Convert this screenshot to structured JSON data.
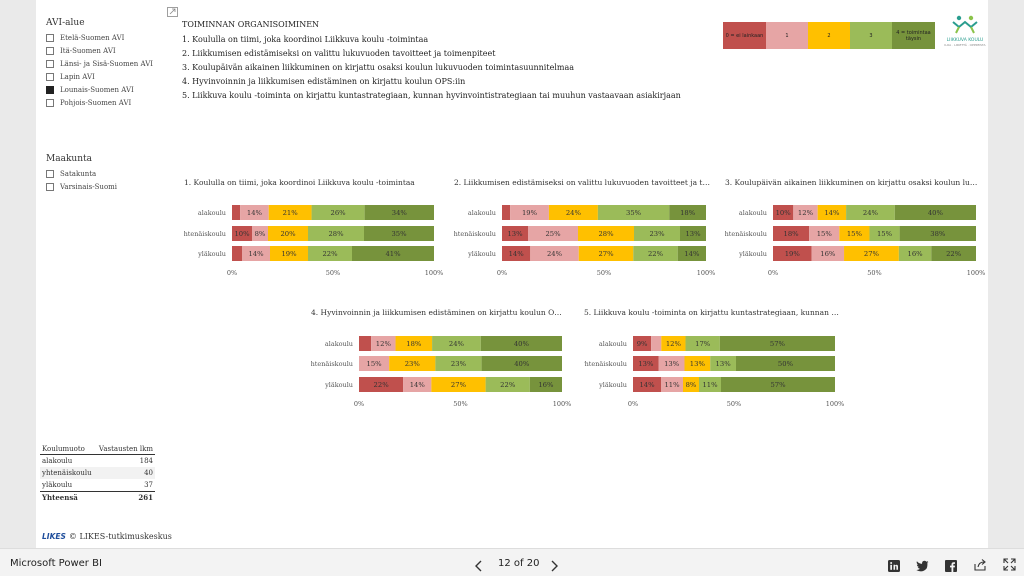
{
  "avi_slicer": {
    "title": "AVI-alue",
    "items": [
      {
        "label": "Etelä-Suomen AVI",
        "checked": false
      },
      {
        "label": "Itä-Suomen AVI",
        "checked": false
      },
      {
        "label": "Länsi- ja Sisä-Suomen AVI",
        "checked": false
      },
      {
        "label": "Lapin AVI",
        "checked": false
      },
      {
        "label": "Lounais-Suomen AVI",
        "checked": true
      },
      {
        "label": "Pohjois-Suomen AVI",
        "checked": false
      }
    ]
  },
  "maakunta_slicer": {
    "title": "Maakunta",
    "items": [
      {
        "label": "Satakunta",
        "checked": false
      },
      {
        "label": "Varsinais-Suomi",
        "checked": false
      }
    ]
  },
  "header": {
    "title": "TOIMINNAN ORGANISOIMINEN",
    "lines": [
      "1. Koululla on tiimi, joka koordinoi Liikkuva koulu -toimintaa",
      "2. Liikkumisen edistämiseksi on valittu lukuvuoden tavoitteet ja toimenpiteet",
      "3. Koulupäivän aikainen liikkuminen on kirjattu osaksi koulun lukuvuoden toimintasuunnitelmaa",
      "4. Hyvinvoinnin ja liikkumisen edistäminen on kirjattu koulun OPS:iin",
      "5. Liikkuva koulu -toiminta on kirjattu kuntastrategiaan, kunnan hyvinvointistrategiaan tai muuhun vastaavaan asiakirjaan"
    ]
  },
  "scale_legend": [
    {
      "label": "0 = ei lainkaan",
      "color": "#c0504d"
    },
    {
      "label": "1",
      "color": "#e6a5a5"
    },
    {
      "label": "2",
      "color": "#ffc000"
    },
    {
      "label": "3",
      "color": "#9bbb59"
    },
    {
      "label": "4 = toimintaa täysin",
      "color": "#77933c"
    }
  ],
  "logo": {
    "text": "LIIKKUVA KOULU",
    "subtext": "ILOA · LIIKETTÄ · OPPIMISTA"
  },
  "colors": [
    "#c0504d",
    "#e6a5a5",
    "#ffc000",
    "#9bbb59",
    "#77933c"
  ],
  "chart_data": [
    {
      "type": "bar",
      "title": "1. Koululla on tiimi, joka koordinoi Liikkuva koulu -toimintaa",
      "categories": [
        "alakoulu",
        "yhtenäiskoulu",
        "yläkoulu"
      ],
      "stacked_percent": true,
      "xticks": [
        "0%",
        "50%",
        "100%"
      ],
      "rows": [
        {
          "values": [
            4,
            14,
            21,
            26,
            34
          ],
          "labels": [
            "",
            "14%",
            "21%",
            "26%",
            "34%"
          ]
        },
        {
          "values": [
            10,
            8,
            20,
            28,
            35
          ],
          "labels": [
            "10%",
            "8%",
            "20%",
            "28%",
            "35%"
          ]
        },
        {
          "values": [
            5,
            14,
            19,
            22,
            41
          ],
          "labels": [
            "",
            "14%",
            "19%",
            "22%",
            "41%"
          ]
        }
      ]
    },
    {
      "type": "bar",
      "title": "2. Liikkumisen edistämiseksi on valittu lukuvuoden tavoitteet ja to...",
      "categories": [
        "alakoulu",
        "yhtenäiskoulu",
        "yläkoulu"
      ],
      "stacked_percent": true,
      "xticks": [
        "0%",
        "50%",
        "100%"
      ],
      "rows": [
        {
          "values": [
            4,
            19,
            24,
            35,
            18
          ],
          "labels": [
            "",
            "19%",
            "24%",
            "35%",
            "18%"
          ]
        },
        {
          "values": [
            13,
            25,
            28,
            23,
            13
          ],
          "labels": [
            "13%",
            "25%",
            "28%",
            "23%",
            "13%"
          ]
        },
        {
          "values": [
            14,
            24,
            27,
            22,
            14
          ],
          "labels": [
            "14%",
            "24%",
            "27%",
            "22%",
            "14%"
          ]
        }
      ]
    },
    {
      "type": "bar",
      "title": "3. Koulupäivän aikainen liikkuminen on kirjattu osaksi koulun luk...",
      "categories": [
        "alakoulu",
        "yhtenäiskoulu",
        "yläkoulu"
      ],
      "stacked_percent": true,
      "xticks": [
        "0%",
        "50%",
        "100%"
      ],
      "rows": [
        {
          "values": [
            10,
            12,
            14,
            24,
            40
          ],
          "labels": [
            "10%",
            "12%",
            "14%",
            "24%",
            "40%"
          ]
        },
        {
          "values": [
            18,
            15,
            15,
            15,
            38
          ],
          "labels": [
            "18%",
            "15%",
            "15%",
            "15%",
            "38%"
          ]
        },
        {
          "values": [
            19,
            16,
            27,
            16,
            22
          ],
          "labels": [
            "19%",
            "16%",
            "27%",
            "16%",
            "22%"
          ]
        }
      ]
    },
    {
      "type": "bar",
      "title": "4. Hyvinvoinnin ja liikkumisen edistäminen on kirjattu koulun OPS...",
      "categories": [
        "alakoulu",
        "yhtenäiskoulu",
        "yläkoulu"
      ],
      "stacked_percent": true,
      "xticks": [
        "0%",
        "50%",
        "100%"
      ],
      "rows": [
        {
          "values": [
            6,
            12,
            18,
            24,
            40
          ],
          "labels": [
            "",
            "12%",
            "18%",
            "24%",
            "40%"
          ]
        },
        {
          "values": [
            0,
            15,
            23,
            23,
            40
          ],
          "labels": [
            "",
            "15%",
            "23%",
            "23%",
            "40%"
          ]
        },
        {
          "values": [
            22,
            14,
            27,
            22,
            16
          ],
          "labels": [
            "22%",
            "14%",
            "27%",
            "22%",
            "16%"
          ]
        }
      ]
    },
    {
      "type": "bar",
      "title": "5. Liikkuva koulu -toiminta on kirjattu kuntastrategiaan, kunnan h...",
      "categories": [
        "alakoulu",
        "yhtenäiskoulu",
        "yläkoulu"
      ],
      "stacked_percent": true,
      "xticks": [
        "0%",
        "50%",
        "100%"
      ],
      "rows": [
        {
          "values": [
            9,
            5,
            12,
            17,
            57
          ],
          "labels": [
            "9%",
            "",
            "12%",
            "17%",
            "57%"
          ]
        },
        {
          "values": [
            13,
            13,
            13,
            13,
            50
          ],
          "labels": [
            "13%",
            "13%",
            "13%",
            "13%",
            "50%"
          ]
        },
        {
          "values": [
            14,
            11,
            8,
            11,
            57
          ],
          "labels": [
            "14%",
            "11%",
            "8%",
            "11%",
            "57%"
          ]
        }
      ]
    }
  ],
  "table": {
    "headers": [
      "Koulumuoto",
      "Vastausten lkm"
    ],
    "rows": [
      {
        "name": "alakoulu",
        "count": "184"
      },
      {
        "name": "yhtenäiskoulu",
        "count": "40"
      },
      {
        "name": "yläkoulu",
        "count": "37"
      }
    ],
    "total": {
      "name": "Yhteensä",
      "count": "261"
    }
  },
  "credit": {
    "logo": "LIKES",
    "text": "© LIKES-tutkimuskeskus"
  },
  "footer": {
    "app": "Microsoft Power BI",
    "page": "12 of 20"
  },
  "icons": [
    "expand-icon",
    "prev-page-icon",
    "next-page-icon",
    "linkedin-icon",
    "twitter-icon",
    "facebook-icon",
    "share-icon",
    "fullscreen-icon"
  ]
}
